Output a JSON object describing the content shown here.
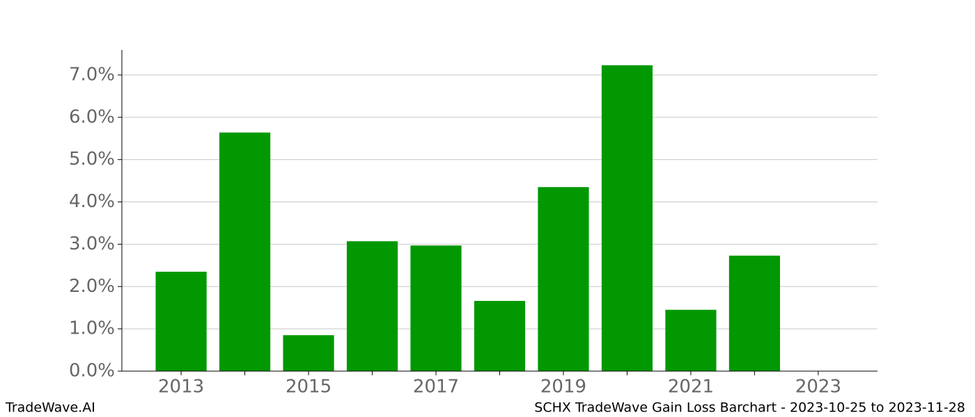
{
  "chart_data": {
    "type": "bar",
    "title": "SCHX TradeWave Gain Loss Barchart - 2023-10-25 to 2023-11-28",
    "watermark": "TradeWave.AI",
    "x": [
      2013,
      2014,
      2015,
      2016,
      2017,
      2018,
      2019,
      2020,
      2021,
      2022
    ],
    "values": [
      2.35,
      5.64,
      0.85,
      3.07,
      2.97,
      1.66,
      4.35,
      7.23,
      1.45,
      2.73
    ],
    "color": "#029802",
    "bar_width": 0.8,
    "xlim": [
      2012.07,
      2023.93
    ],
    "xticks": [
      2013,
      2015,
      2017,
      2019,
      2021,
      2023
    ],
    "minor_xticks": [
      2014,
      2016,
      2018,
      2020,
      2022
    ],
    "ylim": [
      0,
      7.59
    ],
    "yticks": [
      {
        "value": 0,
        "label": "0.0%"
      },
      {
        "value": 1,
        "label": "1.0%"
      },
      {
        "value": 2,
        "label": "2.0%"
      },
      {
        "value": 3,
        "label": "3.0%"
      },
      {
        "value": 4,
        "label": "4.0%"
      },
      {
        "value": 5,
        "label": "5.0%"
      },
      {
        "value": 6,
        "label": "6.0%"
      },
      {
        "value": 7,
        "label": "7.0%"
      }
    ],
    "grid": true
  }
}
